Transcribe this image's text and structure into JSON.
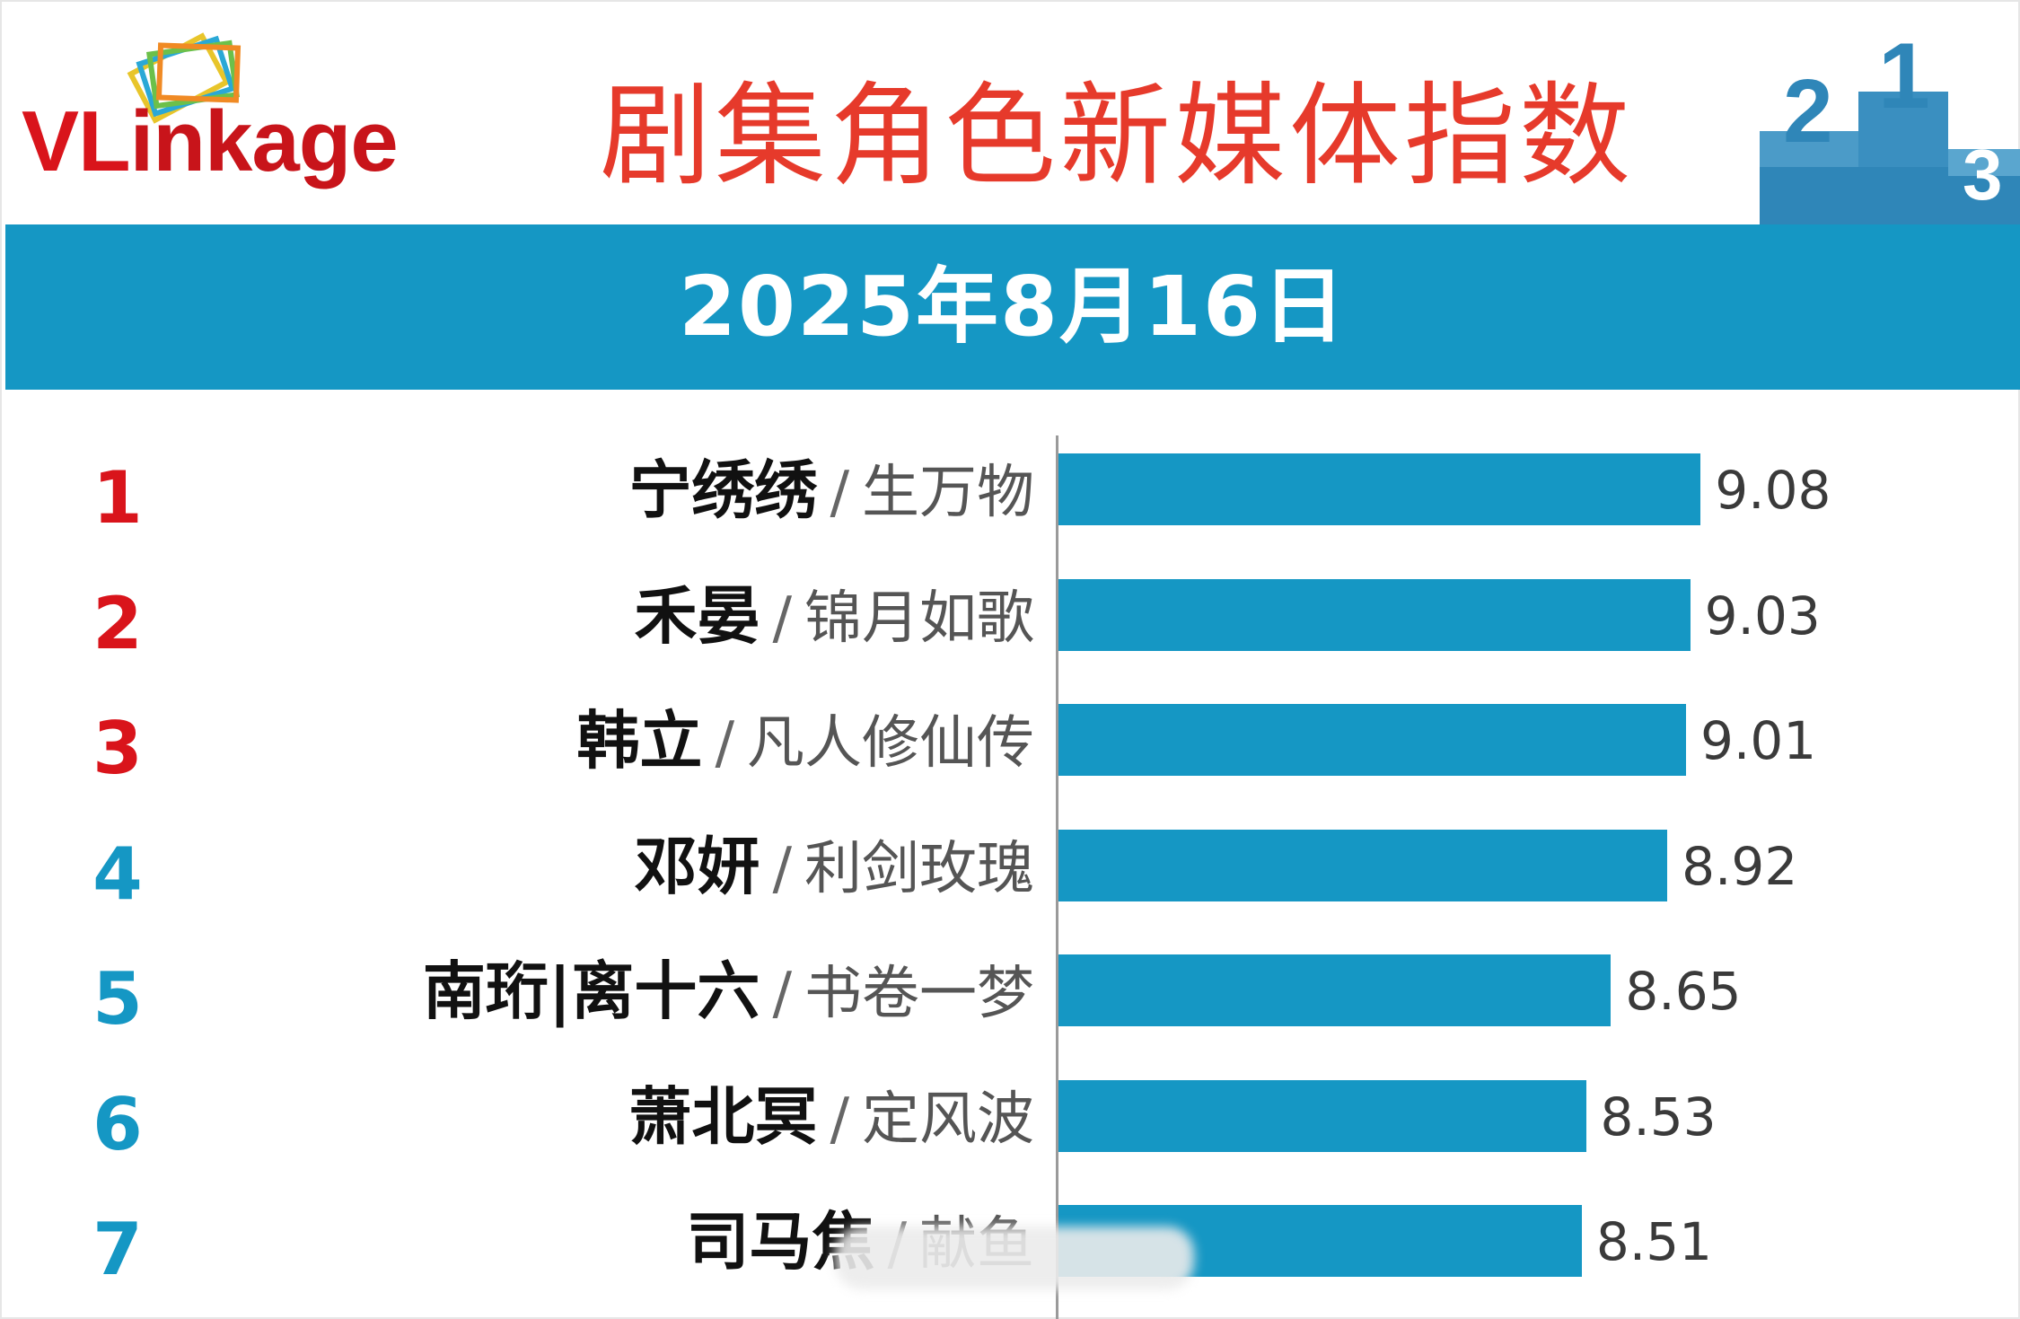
{
  "logo": {
    "brand_prefix": "VL",
    "brand_rest": "inkage"
  },
  "header": {
    "title": "剧集角色新媒体指数"
  },
  "band": {
    "date": "2025年8月16日"
  },
  "colors": {
    "bar": "#1597c4",
    "rank_top": "#d9141b",
    "rank_other": "#1597c4",
    "title": "#e63a2b",
    "band": "#1597c4"
  },
  "chart_data": {
    "type": "bar",
    "orientation": "horizontal",
    "categories": [
      "宁绣绣 / 生万物",
      "禾晏 / 锦月如歌",
      "韩立 / 凡人修仙传",
      "邓妍 / 利剑玫瑰",
      "南珩|离十六 / 书卷一梦",
      "萧北冥 / 定风波",
      "司马焦 / 献鱼"
    ],
    "rows": [
      {
        "rank": "1",
        "character": "宁绣绣",
        "sep": "/",
        "drama": "生万物",
        "value": 9.08
      },
      {
        "rank": "2",
        "character": "禾晏",
        "sep": "/",
        "drama": "锦月如歌",
        "value": 9.03
      },
      {
        "rank": "3",
        "character": "韩立",
        "sep": "/",
        "drama": "凡人修仙传",
        "value": 9.01
      },
      {
        "rank": "4",
        "character": "邓妍",
        "sep": "/",
        "drama": "利剑玫瑰",
        "value": 8.92
      },
      {
        "rank": "5",
        "character": "南珩|离十六",
        "sep": "/",
        "drama": "书卷一梦",
        "value": 8.65
      },
      {
        "rank": "6",
        "character": "萧北冥",
        "sep": "/",
        "drama": "定风波",
        "value": 8.53
      },
      {
        "rank": "7",
        "character": "司马焦",
        "sep": "/",
        "drama": "献鱼",
        "value": 8.51
      }
    ],
    "values": [
      9.08,
      9.03,
      9.01,
      8.92,
      8.65,
      8.53,
      8.51
    ],
    "title": "剧集角色新媒体指数",
    "xlabel": "",
    "ylabel": "",
    "xlim": [
      6.0,
      9.5
    ],
    "grid": false,
    "legend": "none"
  }
}
